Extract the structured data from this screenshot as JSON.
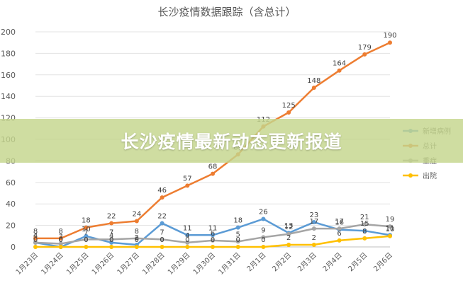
{
  "banner": {
    "text": "长沙疫情最新动态更新报道"
  },
  "chart_data": {
    "type": "line",
    "title": "长沙疫情数据跟踪（含总计）",
    "xlabel": "",
    "ylabel": "",
    "ylim": [
      0,
      200
    ],
    "yticks": [
      0,
      20,
      40,
      60,
      80,
      100,
      120,
      140,
      160,
      180,
      200
    ],
    "grid": true,
    "legend_position": "right",
    "categories": [
      "1月23日",
      "1月24日",
      "1月25日",
      "1月26日",
      "1月27日",
      "1月28日",
      "1月29日",
      "1月30日",
      "1月31日",
      "2月1日",
      "2月2日",
      "2月3日",
      "2月4日",
      "2月5日",
      "2月6日"
    ],
    "series": [
      {
        "name": "新增病例",
        "color": "#5b9bd5",
        "values": [
          4,
          0,
          10,
          4,
          2,
          22,
          11,
          11,
          18,
          26,
          13,
          23,
          16,
          15,
          11
        ]
      },
      {
        "name": "总计",
        "color": "#ed7d31",
        "values": [
          8,
          8,
          18,
          22,
          24,
          46,
          57,
          68,
          86,
          112,
          125,
          148,
          164,
          179,
          190
        ]
      },
      {
        "name": "重症",
        "color": "#a5a5a5",
        "values": [
          4,
          3,
          7,
          7,
          8,
          7,
          4,
          6,
          5,
          9,
          12,
          17,
          17,
          21,
          19
        ]
      },
      {
        "name": "出院",
        "color": "#ffc000",
        "values": [
          0,
          0,
          0,
          0,
          0,
          0,
          0,
          0,
          0,
          0,
          2,
          2,
          6,
          8,
          10
        ]
      }
    ]
  }
}
